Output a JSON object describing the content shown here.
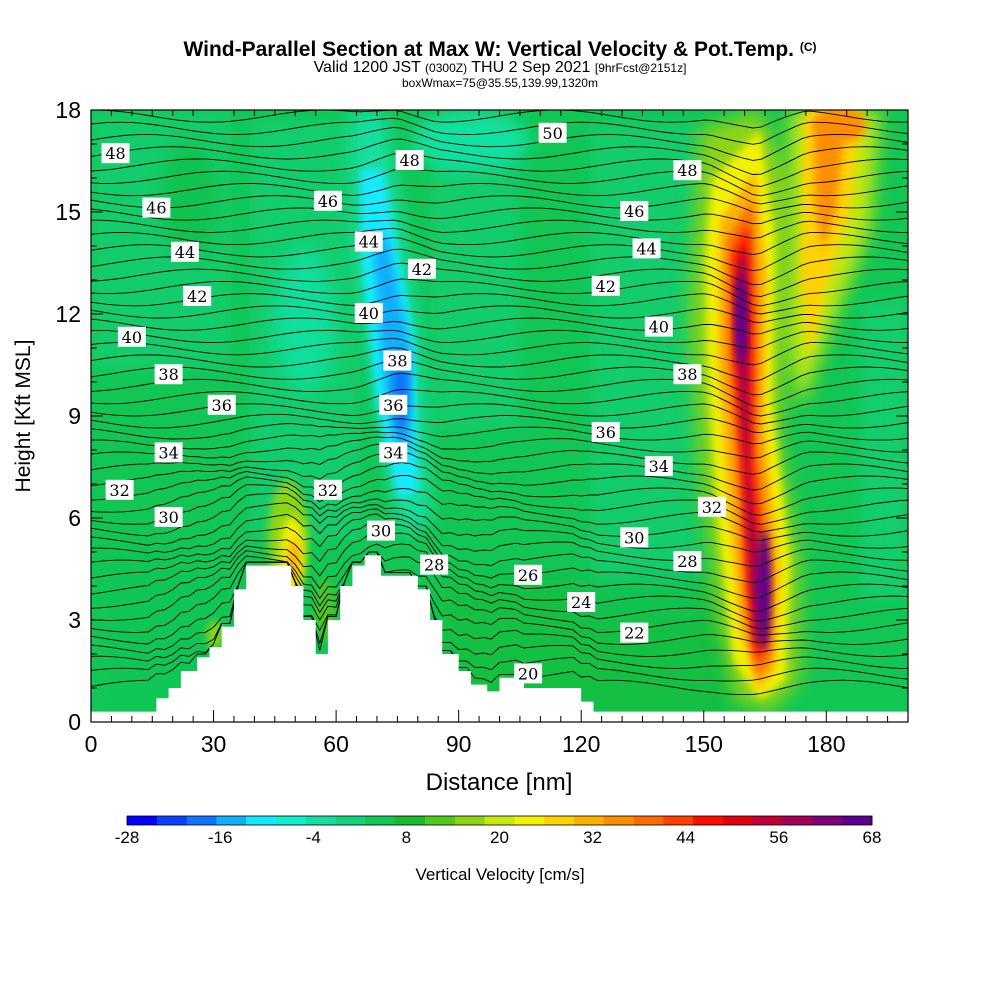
{
  "header": {
    "title": "Wind-Parallel Section at Max W: Vertical Velocity & Pot.Temp.",
    "copyright": "(C)",
    "subtitle_valid": "Valid 1200 JST",
    "subtitle_utc": "(0300Z)",
    "subtitle_date": "THU 2 Sep 2021",
    "subtitle_fcst": "[9hrFcst@2151z]",
    "box_info": "boxWmax=75@35.55,139.99,1320m"
  },
  "colorbar": {
    "label": "Vertical Velocity [cm/s]",
    "tick_labels": [
      "-28",
      "-16",
      "-4",
      "8",
      "20",
      "32",
      "44",
      "56",
      "68"
    ],
    "colors": [
      "#0000ff",
      "#0a3fff",
      "#0f74ff",
      "#11b0ff",
      "#14eaff",
      "#10f0cc",
      "#14dfa0",
      "#10d27e",
      "#12c654",
      "#1bb82b",
      "#50c81c",
      "#8ed416",
      "#c6e80f",
      "#f2f206",
      "#ffd200",
      "#ffb000",
      "#ff8f00",
      "#ff6a00",
      "#ff3f00",
      "#ff0a00",
      "#e00012",
      "#c00033",
      "#a00058",
      "#800078",
      "#5a0090"
    ]
  },
  "chart_data": {
    "type": "heatmap",
    "title": "Wind-Parallel Section at Max W: Vertical Velocity & Pot.Temp.",
    "xlabel": "Distance [nm]",
    "ylabel": "Height [Kft MSL]",
    "xlim": [
      0,
      200
    ],
    "ylim": [
      0,
      18
    ],
    "x_ticks": [
      0,
      30,
      60,
      90,
      120,
      150,
      180
    ],
    "y_ticks": [
      0,
      3,
      6,
      9,
      12,
      15,
      18
    ],
    "color_variable": "Vertical Velocity [cm/s]",
    "color_range": [
      -28,
      68
    ],
    "features": [
      {
        "name": "updraft core",
        "x_range": [
          153,
          172
        ],
        "height_range": [
          1.5,
          14
        ],
        "max_w": 68
      },
      {
        "name": "secondary updraft",
        "x_range": [
          170,
          190
        ],
        "height_range": [
          8,
          18
        ],
        "max_w": 35
      },
      {
        "name": "downdraft band",
        "x_range": [
          66,
          82
        ],
        "height_range": [
          7,
          14
        ],
        "min_w": -20
      },
      {
        "name": "lee-side updraft",
        "x_range": [
          44,
          54
        ],
        "height_range": [
          4,
          7
        ],
        "max_w": 25
      }
    ],
    "terrain_profile": [
      [
        0,
        0.3
      ],
      [
        16,
        0.3
      ],
      [
        16,
        0.7
      ],
      [
        19,
        0.7
      ],
      [
        19,
        1.0
      ],
      [
        22,
        1.0
      ],
      [
        22,
        1.5
      ],
      [
        26,
        1.5
      ],
      [
        26,
        1.9
      ],
      [
        29,
        1.9
      ],
      [
        29,
        2.2
      ],
      [
        32,
        2.2
      ],
      [
        32,
        2.8
      ],
      [
        35,
        2.8
      ],
      [
        35,
        3.9
      ],
      [
        38,
        3.9
      ],
      [
        38,
        4.6
      ],
      [
        49,
        4.6
      ],
      [
        49,
        4.0
      ],
      [
        52,
        4.0
      ],
      [
        52,
        3.0
      ],
      [
        55,
        3.0
      ],
      [
        55,
        2.0
      ],
      [
        58,
        2.0
      ],
      [
        58,
        3.0
      ],
      [
        61,
        3.0
      ],
      [
        61,
        4.0
      ],
      [
        64,
        4.0
      ],
      [
        64,
        4.6
      ],
      [
        67,
        4.6
      ],
      [
        67,
        4.9
      ],
      [
        71,
        4.9
      ],
      [
        71,
        4.3
      ],
      [
        80,
        4.3
      ],
      [
        80,
        3.9
      ],
      [
        83,
        3.9
      ],
      [
        83,
        3.0
      ],
      [
        86,
        3.0
      ],
      [
        86,
        2.0
      ],
      [
        90,
        2.0
      ],
      [
        90,
        1.5
      ],
      [
        93,
        1.5
      ],
      [
        93,
        1.1
      ],
      [
        97,
        1.1
      ],
      [
        97,
        0.9
      ],
      [
        100,
        0.9
      ],
      [
        100,
        1.3
      ],
      [
        106,
        1.3
      ],
      [
        106,
        1.0
      ],
      [
        120,
        1.0
      ],
      [
        120,
        0.6
      ],
      [
        123,
        0.6
      ],
      [
        123,
        0.3
      ],
      [
        200,
        0.3
      ]
    ],
    "theta_contour_labels": [
      {
        "label": "48",
        "x": 6,
        "y": 16.7
      },
      {
        "label": "46",
        "x": 16,
        "y": 15.1
      },
      {
        "label": "44",
        "x": 23,
        "y": 13.8
      },
      {
        "label": "42",
        "x": 26,
        "y": 12.5
      },
      {
        "label": "40",
        "x": 10,
        "y": 11.3
      },
      {
        "label": "38",
        "x": 19,
        "y": 10.2
      },
      {
        "label": "36",
        "x": 32,
        "y": 9.3
      },
      {
        "label": "34",
        "x": 19,
        "y": 7.9
      },
      {
        "label": "32",
        "x": 7,
        "y": 6.8
      },
      {
        "label": "30",
        "x": 19,
        "y": 6.0
      },
      {
        "label": "46",
        "x": 58,
        "y": 15.3
      },
      {
        "label": "48",
        "x": 78,
        "y": 16.5
      },
      {
        "label": "44",
        "x": 68,
        "y": 14.1
      },
      {
        "label": "42",
        "x": 81,
        "y": 13.3
      },
      {
        "label": "40",
        "x": 68,
        "y": 12.0
      },
      {
        "label": "38",
        "x": 75,
        "y": 10.6
      },
      {
        "label": "36",
        "x": 74,
        "y": 9.3
      },
      {
        "label": "34",
        "x": 74,
        "y": 7.9
      },
      {
        "label": "32",
        "x": 58,
        "y": 6.8
      },
      {
        "label": "30",
        "x": 71,
        "y": 5.6
      },
      {
        "label": "28",
        "x": 84,
        "y": 4.6
      },
      {
        "label": "50",
        "x": 113,
        "y": 17.3
      },
      {
        "label": "26",
        "x": 107,
        "y": 4.3
      },
      {
        "label": "24",
        "x": 120,
        "y": 3.5
      },
      {
        "label": "22",
        "x": 133,
        "y": 2.6
      },
      {
        "label": "20",
        "x": 107,
        "y": 1.4
      },
      {
        "label": "48",
        "x": 146,
        "y": 16.2
      },
      {
        "label": "46",
        "x": 133,
        "y": 15.0
      },
      {
        "label": "44",
        "x": 136,
        "y": 13.9
      },
      {
        "label": "42",
        "x": 126,
        "y": 12.8
      },
      {
        "label": "40",
        "x": 139,
        "y": 11.6
      },
      {
        "label": "38",
        "x": 146,
        "y": 10.2
      },
      {
        "label": "36",
        "x": 126,
        "y": 8.5
      },
      {
        "label": "34",
        "x": 139,
        "y": 7.5
      },
      {
        "label": "32",
        "x": 152,
        "y": 6.3
      },
      {
        "label": "30",
        "x": 133,
        "y": 5.4
      },
      {
        "label": "28",
        "x": 146,
        "y": 4.7
      }
    ]
  }
}
